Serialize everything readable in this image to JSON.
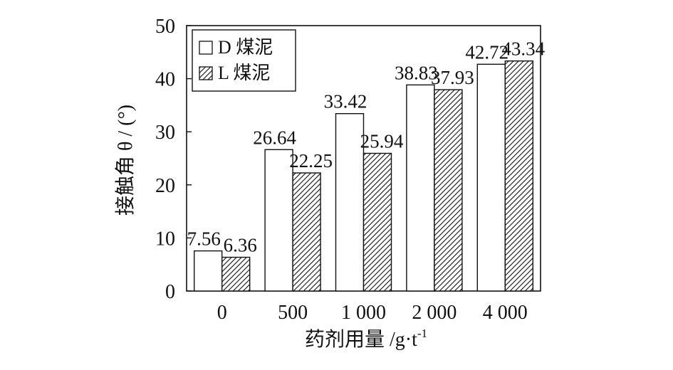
{
  "chart_data": {
    "type": "bar",
    "categories": [
      "0",
      "500",
      "1 000",
      "2 000",
      "4 000"
    ],
    "series": [
      {
        "name": "D 煤泥",
        "values": [
          7.56,
          26.64,
          33.42,
          38.83,
          42.72
        ],
        "pattern": "none"
      },
      {
        "name": "L 煤泥",
        "values": [
          6.36,
          22.25,
          25.94,
          37.93,
          43.34
        ],
        "pattern": "hatch"
      }
    ],
    "data_labels": [
      [
        "7.56",
        "26.64",
        "33.42",
        "38.83",
        "42.72"
      ],
      [
        "6.36",
        "22.25",
        "25.94",
        "37.93",
        "43.34"
      ]
    ],
    "xlabel_main": "药剂用量 /g·t",
    "xlabel_sup": "-1",
    "ylabel": "接触角 θ / (°)",
    "ylim": [
      0,
      50
    ],
    "yticks": [
      0,
      10,
      20,
      30,
      40,
      50
    ],
    "grid": false,
    "legend_position": "top-left",
    "colors": {
      "bar_stroke": "#111111",
      "bar_fill": "#ffffff",
      "hatch": "#111111"
    }
  }
}
